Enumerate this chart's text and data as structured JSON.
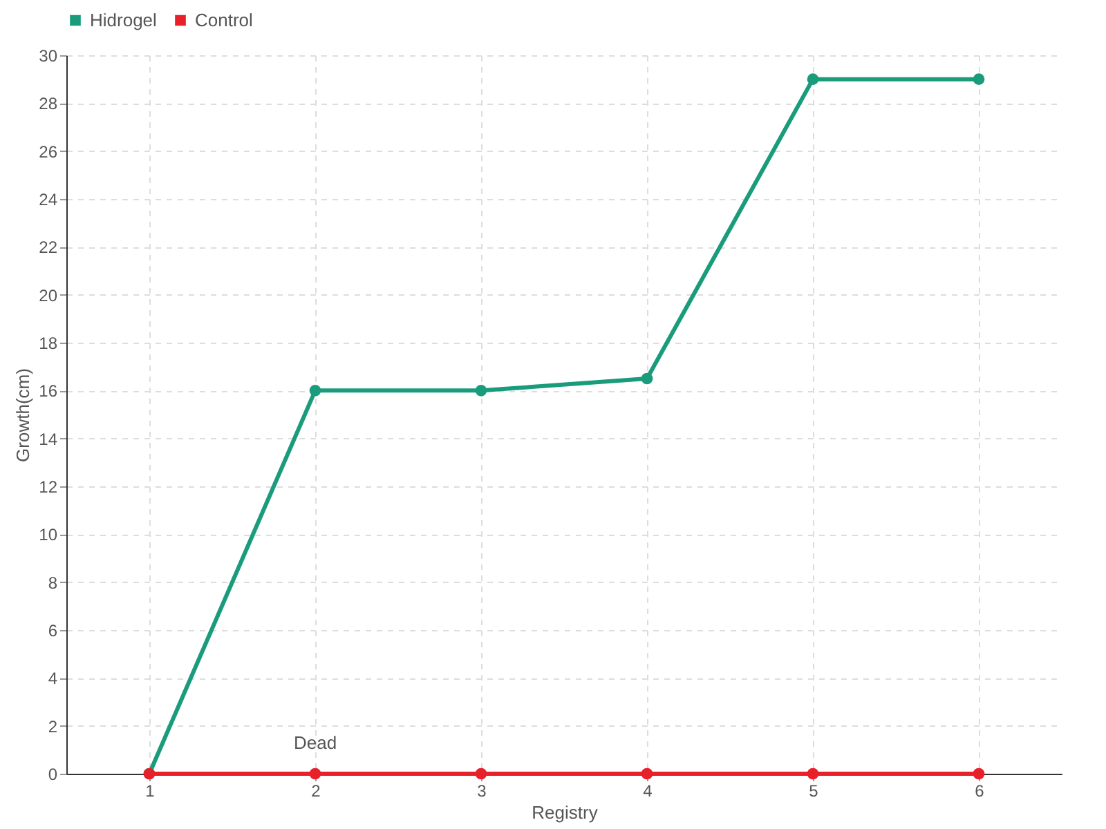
{
  "chart_data": {
    "type": "line",
    "xlabel": "Registry",
    "ylabel": "Growth(cm)",
    "x": [
      1,
      2,
      3,
      4,
      5,
      6
    ],
    "series": [
      {
        "name": "Hidrogel",
        "color": "#1a9c7c",
        "values": [
          0,
          16,
          16,
          16.5,
          29,
          29
        ]
      },
      {
        "name": "Control",
        "color": "#e8202a",
        "values": [
          0,
          0,
          0,
          0,
          0,
          0
        ]
      }
    ],
    "xlim": [
      0.5,
      6.5
    ],
    "xticks": [
      1,
      2,
      3,
      4,
      5,
      6
    ],
    "ylim": [
      0,
      30
    ],
    "yticks": [
      0,
      2,
      4,
      6,
      8,
      10,
      12,
      14,
      16,
      18,
      20,
      22,
      24,
      26,
      28,
      30
    ],
    "annotations": [
      {
        "text": "Dead",
        "x": 2,
        "y": 0
      }
    ],
    "grid": true,
    "legend": "top left",
    "marker": "circle",
    "line_style": "solid"
  }
}
